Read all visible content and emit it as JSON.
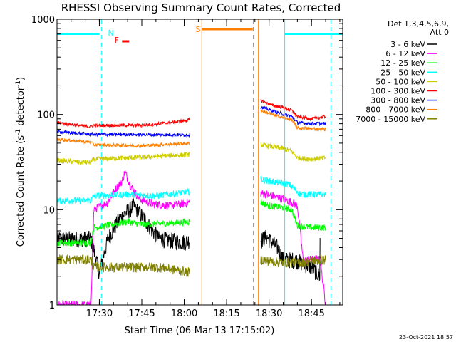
{
  "chart_data": {
    "type": "line",
    "title": "RHESSI Observing Summary Count Rates, Corrected",
    "xlabel": "Start Time (06-Mar-13 17:15:02)",
    "ylabel": "Corrected Count Rate (s⁻¹ detector⁻¹)",
    "ylabel_parts": {
      "main": "Corrected Count Rate (s",
      "sup1": "-1",
      "mid": " detector",
      "sup2": "-1",
      "end": ")"
    },
    "y_scale": "log",
    "ylim": [
      1,
      1000
    ],
    "xlim_minutes": [
      0,
      101
    ],
    "x_ticks": [
      {
        "label": "17:30",
        "t": 14.97
      },
      {
        "label": "17:45",
        "t": 29.97
      },
      {
        "label": "18:00",
        "t": 44.97
      },
      {
        "label": "18:15",
        "t": 59.97
      },
      {
        "label": "18:30",
        "t": 74.97
      },
      {
        "label": "18:45",
        "t": 89.97
      }
    ],
    "y_ticks": [
      {
        "label": "1",
        "v": 1
      },
      {
        "label": "10",
        "v": 10
      },
      {
        "label": "100",
        "v": 100
      },
      {
        "label": "1000",
        "v": 1000
      }
    ],
    "legend": {
      "placement": "right",
      "header": [
        "Det 1,3,4,5,6,9,",
        "Att 0"
      ],
      "entries": [
        {
          "label": "3 - 6 keV",
          "color": "#000000"
        },
        {
          "label": "6 - 12 keV",
          "color": "#ff00ff"
        },
        {
          "label": "12 - 25 keV",
          "color": "#00ff00"
        },
        {
          "label": "25 - 50 keV",
          "color": "#00ffff"
        },
        {
          "label": "50 - 100 keV",
          "color": "#cccc00"
        },
        {
          "label": "100 - 300 keV",
          "color": "#ff0000"
        },
        {
          "label": "300 - 800 keV",
          "color": "#0000ff"
        },
        {
          "label": "800 - 7000 keV",
          "color": "#ff7f00"
        },
        {
          "label": "7000 - 15000 keV",
          "color": "#808000"
        }
      ]
    },
    "series": [
      {
        "name": "3 - 6 keV",
        "color": "#000000",
        "noise": 0.1,
        "segments": [
          [
            [
              0,
              5
            ],
            [
              12,
              5
            ],
            [
              15,
              2.2
            ],
            [
              18,
              5
            ],
            [
              22,
              8
            ],
            [
              27,
              11
            ],
            [
              31,
              8
            ],
            [
              33,
              6.5
            ],
            [
              36,
              5
            ],
            [
              45,
              4.6
            ],
            [
              47,
              4.8
            ]
          ],
          [
            [
              72,
              4.8
            ],
            [
              74,
              5.2
            ],
            [
              78,
              4
            ],
            [
              80,
              3
            ],
            [
              84,
              3
            ],
            [
              90,
              2.5
            ],
            [
              93,
              2
            ]
          ]
        ]
      },
      {
        "name": "6 - 12 keV",
        "color": "#ff00ff",
        "noise": 0.05,
        "segments": [
          [
            [
              0,
              1
            ],
            [
              12,
              1
            ],
            [
              13,
              10
            ],
            [
              18,
              12
            ],
            [
              21,
              17
            ],
            [
              23,
              20
            ],
            [
              24,
              25
            ],
            [
              26,
              18
            ],
            [
              29,
              13
            ],
            [
              34,
              11.5
            ],
            [
              40,
              11
            ],
            [
              44,
              11.5
            ],
            [
              47,
              12
            ]
          ],
          [
            [
              72,
              15
            ],
            [
              76,
              14
            ],
            [
              80,
              13
            ],
            [
              83,
              12
            ],
            [
              85,
              11
            ],
            [
              87,
              3
            ],
            [
              93,
              3
            ],
            [
              95,
              1
            ]
          ]
        ]
      },
      {
        "name": "12 - 25 keV",
        "color": "#00ff00",
        "noise": 0.04,
        "segments": [
          [
            [
              0,
              4.5
            ],
            [
              12,
              4.5
            ],
            [
              13,
              6.5
            ],
            [
              20,
              7
            ],
            [
              25,
              7.5
            ],
            [
              30,
              7
            ],
            [
              40,
              7.2
            ],
            [
              47,
              7.5
            ]
          ],
          [
            [
              72,
              12
            ],
            [
              75,
              11
            ],
            [
              80,
              10.5
            ],
            [
              83,
              10
            ],
            [
              85,
              6.8
            ],
            [
              90,
              6.5
            ],
            [
              95,
              6.5
            ]
          ]
        ]
      },
      {
        "name": "25 - 50 keV",
        "color": "#00ffff",
        "noise": 0.04,
        "segments": [
          [
            [
              0,
              12.5
            ],
            [
              12,
              12.5
            ],
            [
              13,
              14
            ],
            [
              25,
              14.5
            ],
            [
              35,
              14
            ],
            [
              47,
              15.5
            ]
          ],
          [
            [
              72,
              21
            ],
            [
              75,
              20
            ],
            [
              82,
              18.5
            ],
            [
              84,
              16.5
            ],
            [
              86,
              14.5
            ],
            [
              95,
              14.5
            ]
          ]
        ]
      },
      {
        "name": "50 - 100 keV",
        "color": "#cccc00",
        "noise": 0.03,
        "segments": [
          [
            [
              0,
              33
            ],
            [
              12,
              31
            ],
            [
              13,
              34
            ],
            [
              30,
              35.5
            ],
            [
              40,
              37
            ],
            [
              47,
              38
            ]
          ],
          [
            [
              72,
              48
            ],
            [
              80,
              44
            ],
            [
              83,
              41
            ],
            [
              85,
              35
            ],
            [
              90,
              34
            ],
            [
              95,
              35
            ]
          ]
        ]
      },
      {
        "name": "100 - 300 keV",
        "color": "#ff0000",
        "noise": 0.02,
        "segments": [
          [
            [
              0,
              82
            ],
            [
              12,
              74
            ],
            [
              13,
              77
            ],
            [
              30,
              77
            ],
            [
              40,
              82
            ],
            [
              47,
              88
            ]
          ],
          [
            [
              72,
              140
            ],
            [
              76,
              125
            ],
            [
              80,
              118
            ],
            [
              83,
              110
            ],
            [
              85,
              95
            ],
            [
              90,
              90
            ],
            [
              95,
              95
            ]
          ]
        ]
      },
      {
        "name": "300 - 800 keV",
        "color": "#0000ff",
        "noise": 0.02,
        "segments": [
          [
            [
              0,
              66
            ],
            [
              12,
              62
            ],
            [
              13,
              62
            ],
            [
              47,
              61
            ]
          ],
          [
            [
              72,
              120
            ],
            [
              78,
              105
            ],
            [
              83,
              95
            ],
            [
              85,
              82
            ],
            [
              95,
              80
            ]
          ]
        ]
      },
      {
        "name": "800 - 7000 keV",
        "color": "#ff7f00",
        "noise": 0.02,
        "segments": [
          [
            [
              0,
              55
            ],
            [
              12,
              51
            ],
            [
              13,
              48
            ],
            [
              30,
              47
            ],
            [
              47,
              50
            ]
          ],
          [
            [
              72,
              110
            ],
            [
              78,
              96
            ],
            [
              83,
              88
            ],
            [
              85,
              72
            ],
            [
              95,
              70
            ]
          ]
        ]
      },
      {
        "name": "7000 - 15000 keV",
        "color": "#808000",
        "noise": 0.06,
        "segments": [
          [
            [
              0,
              3
            ],
            [
              12,
              3
            ],
            [
              13,
              2.5
            ],
            [
              36,
              2.5
            ],
            [
              47,
              2.2
            ]
          ],
          [
            [
              72,
              3
            ],
            [
              79,
              2.8
            ],
            [
              86,
              2.8
            ],
            [
              95,
              3
            ]
          ]
        ]
      }
    ],
    "flags": {
      "night_bars": [
        [
          0,
          15
        ],
        [
          80.5,
          101
        ]
      ],
      "saa_bar": [
        51.2,
        69.2
      ],
      "flare_bar": [
        23,
        25.5
      ],
      "solid_verticals": [
        51.2,
        71.2,
        80.5
      ],
      "dashed_verticals": [
        15.7,
        69.4,
        96.8
      ],
      "labels": [
        {
          "text": "N",
          "color": "#00ffff",
          "t": 18.0
        },
        {
          "text": "F",
          "color": "#ff0000",
          "t": 20.3
        },
        {
          "text": "S",
          "color": "#ff7f00",
          "t": 49.0
        }
      ]
    },
    "footer_date": "23-Oct-2021 18:57",
    "colors": {
      "night": "#00ffff",
      "saa": "#ff7f00",
      "flare": "#ff0000"
    }
  }
}
